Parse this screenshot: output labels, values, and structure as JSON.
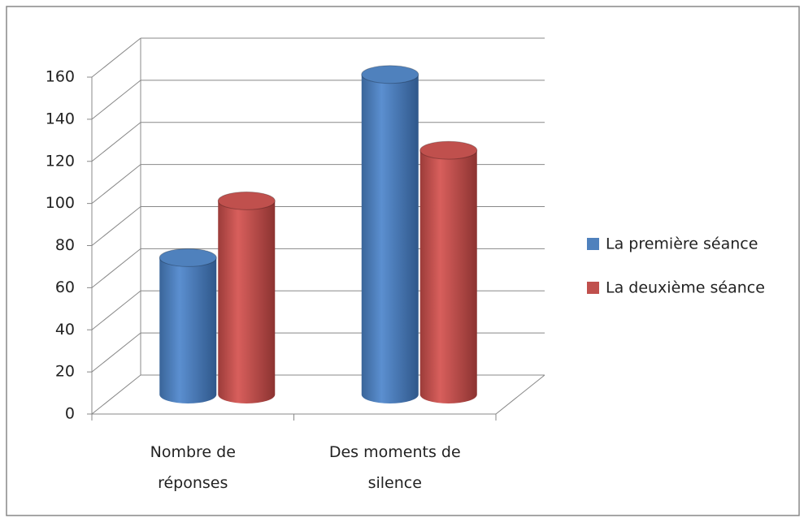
{
  "chart_data": {
    "type": "bar3d_cylinder",
    "categories": [
      "Nombre de réponses",
      "Des moments de silence"
    ],
    "series": [
      {
        "name": "La première séance",
        "color": "#4f81bd",
        "values": [
          65,
          152
        ]
      },
      {
        "name": "La deuxième séance",
        "color": "#c0504d",
        "values": [
          92,
          116
        ]
      }
    ],
    "ylim": [
      0,
      160
    ],
    "yticks": [
      0,
      20,
      40,
      60,
      80,
      100,
      120,
      140,
      160
    ],
    "grid": true,
    "legend": "right"
  }
}
